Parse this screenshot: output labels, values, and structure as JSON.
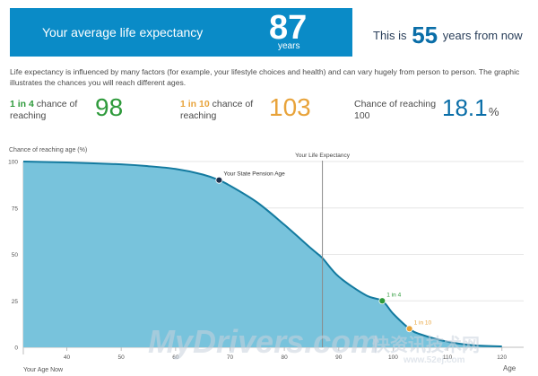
{
  "header": {
    "label": "Your average life expectancy",
    "value": "87",
    "unit": "years",
    "from_now_prefix": "This is",
    "from_now_value": "55",
    "from_now_suffix": "years from now"
  },
  "intro": "Life expectancy is influenced by many factors (for example, your lifestyle choices and health) and can vary hugely from person to person. The graphic illustrates the chances you will reach different ages.",
  "stats": [
    {
      "strong": "1 in 4",
      "text": "chance of reaching",
      "value": "98",
      "color": "#2e9a3b"
    },
    {
      "strong": "1 in 10",
      "text": "chance of reaching",
      "value": "103",
      "color": "#e8a33a"
    },
    {
      "strong": "",
      "text": "Chance of reaching 100",
      "value": "18.1",
      "unit": "%",
      "color": "#0a6ea8"
    }
  ],
  "watermark": {
    "text1": "MyDrivers.com",
    "text2": "快资讯技术网",
    "text3": "www.52ej.com"
  },
  "chart_data": {
    "type": "area",
    "ylabel": "Chance of reaching age (%)",
    "xlabel": "Age",
    "xlim": [
      32,
      124
    ],
    "ylim": [
      0,
      100
    ],
    "x_ticks": [
      40,
      50,
      60,
      70,
      80,
      90,
      100,
      110,
      120
    ],
    "y_ticks": [
      0,
      25,
      50,
      75,
      100
    ],
    "start_label": "Your Age Now",
    "x": [
      32,
      40,
      50,
      55,
      60,
      65,
      68,
      70,
      75,
      80,
      85,
      87,
      90,
      95,
      98,
      100,
      103,
      105,
      110,
      115,
      120
    ],
    "values": [
      100,
      99.5,
      98.5,
      97.5,
      96,
      93,
      90,
      87,
      78,
      66,
      53,
      48,
      38,
      28,
      25,
      18.1,
      10,
      7,
      3,
      1,
      0.5
    ],
    "vline": {
      "x": 87,
      "label": "Your Life Expectancy"
    },
    "markers": [
      {
        "x": 68,
        "y": 90,
        "label": "Your State Pension Age",
        "color": "#1c2d4a"
      },
      {
        "x": 98,
        "y": 25,
        "label": "1 in 4",
        "color": "#2e9a3b"
      },
      {
        "x": 103,
        "y": 10,
        "label": "1 in 10",
        "color": "#e8a33a"
      }
    ],
    "colors": {
      "fill": "#78c3dc",
      "line": "#137a9f"
    }
  }
}
